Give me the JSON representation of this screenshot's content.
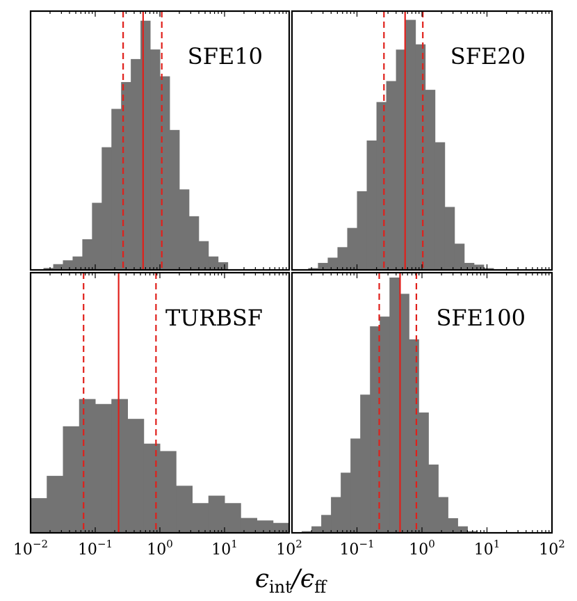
{
  "chart_data": {
    "type": "histogram",
    "xscale": "log",
    "xlim": [
      0.01,
      100
    ],
    "xticks": [
      {
        "base": "10",
        "exp": "−2"
      },
      {
        "base": "10",
        "exp": "−1"
      },
      {
        "base": "10",
        "exp": "0"
      },
      {
        "base": "10",
        "exp": "1"
      },
      {
        "base": "10",
        "exp": "2"
      }
    ],
    "xlabel": {
      "eps": "ϵ",
      "sub1": "int",
      "slash": "/",
      "sub2": "ff"
    },
    "colors": {
      "bars": "#737373",
      "lines": "#e0201b",
      "frame": "#000000"
    },
    "panels": [
      {
        "label": "SFE10",
        "bin_edges_log10": [
          -1.8,
          -1.65,
          -1.5,
          -1.35,
          -1.2,
          -1.05,
          -0.9,
          -0.75,
          -0.6,
          -0.45,
          -0.3,
          -0.15,
          0.0,
          0.15,
          0.3,
          0.45,
          0.6,
          0.75,
          0.9,
          1.05
        ],
        "counts": [
          1,
          3,
          5,
          7,
          16,
          35,
          64,
          84,
          98,
          110,
          130,
          115,
          101,
          73,
          42,
          28,
          15,
          7,
          4
        ],
        "ymax": 135,
        "median": 0.55,
        "lower": 0.27,
        "upper": 1.07
      },
      {
        "label": "SFE20",
        "bin_edges_log10": [
          -1.75,
          -1.6,
          -1.45,
          -1.3,
          -1.15,
          -1.0,
          -0.85,
          -0.7,
          -0.55,
          -0.4,
          -0.25,
          -0.1,
          0.05,
          0.2,
          0.35,
          0.5,
          0.65,
          0.8,
          0.95,
          1.1
        ],
        "counts": [
          1,
          4,
          7,
          13,
          24,
          45,
          74,
          96,
          108,
          126,
          143,
          129,
          103,
          73,
          36,
          15,
          4,
          3,
          1
        ],
        "ymax": 148,
        "median": 0.55,
        "lower": 0.26,
        "upper": 1.03
      },
      {
        "label": "TURBSF",
        "bin_edges_log10": [
          -2.0,
          -1.75,
          -1.5,
          -1.25,
          -1.0,
          -0.75,
          -0.5,
          -0.25,
          0.0,
          0.25,
          0.5,
          0.75,
          1.0,
          1.25,
          1.5,
          1.75,
          2.0
        ],
        "counts": [
          14,
          23,
          43,
          54,
          52,
          54,
          46,
          36,
          33,
          19,
          12,
          15,
          12,
          6,
          5,
          4
        ],
        "ymax": 105,
        "median": 0.23,
        "lower": 0.066,
        "upper": 0.87
      },
      {
        "label": "SFE100",
        "bin_edges_log10": [
          -1.85,
          -1.7,
          -1.55,
          -1.4,
          -1.25,
          -1.1,
          -0.95,
          -0.8,
          -0.65,
          -0.5,
          -0.35,
          -0.2,
          -0.05,
          0.1,
          0.25,
          0.4,
          0.55,
          0.7,
          0.85
        ],
        "counts": [
          1,
          4,
          11,
          22,
          37,
          58,
          85,
          127,
          133,
          157,
          147,
          119,
          74,
          42,
          22,
          9,
          4,
          1
        ],
        "ymax": 160,
        "median": 0.46,
        "lower": 0.22,
        "upper": 0.82
      }
    ]
  }
}
